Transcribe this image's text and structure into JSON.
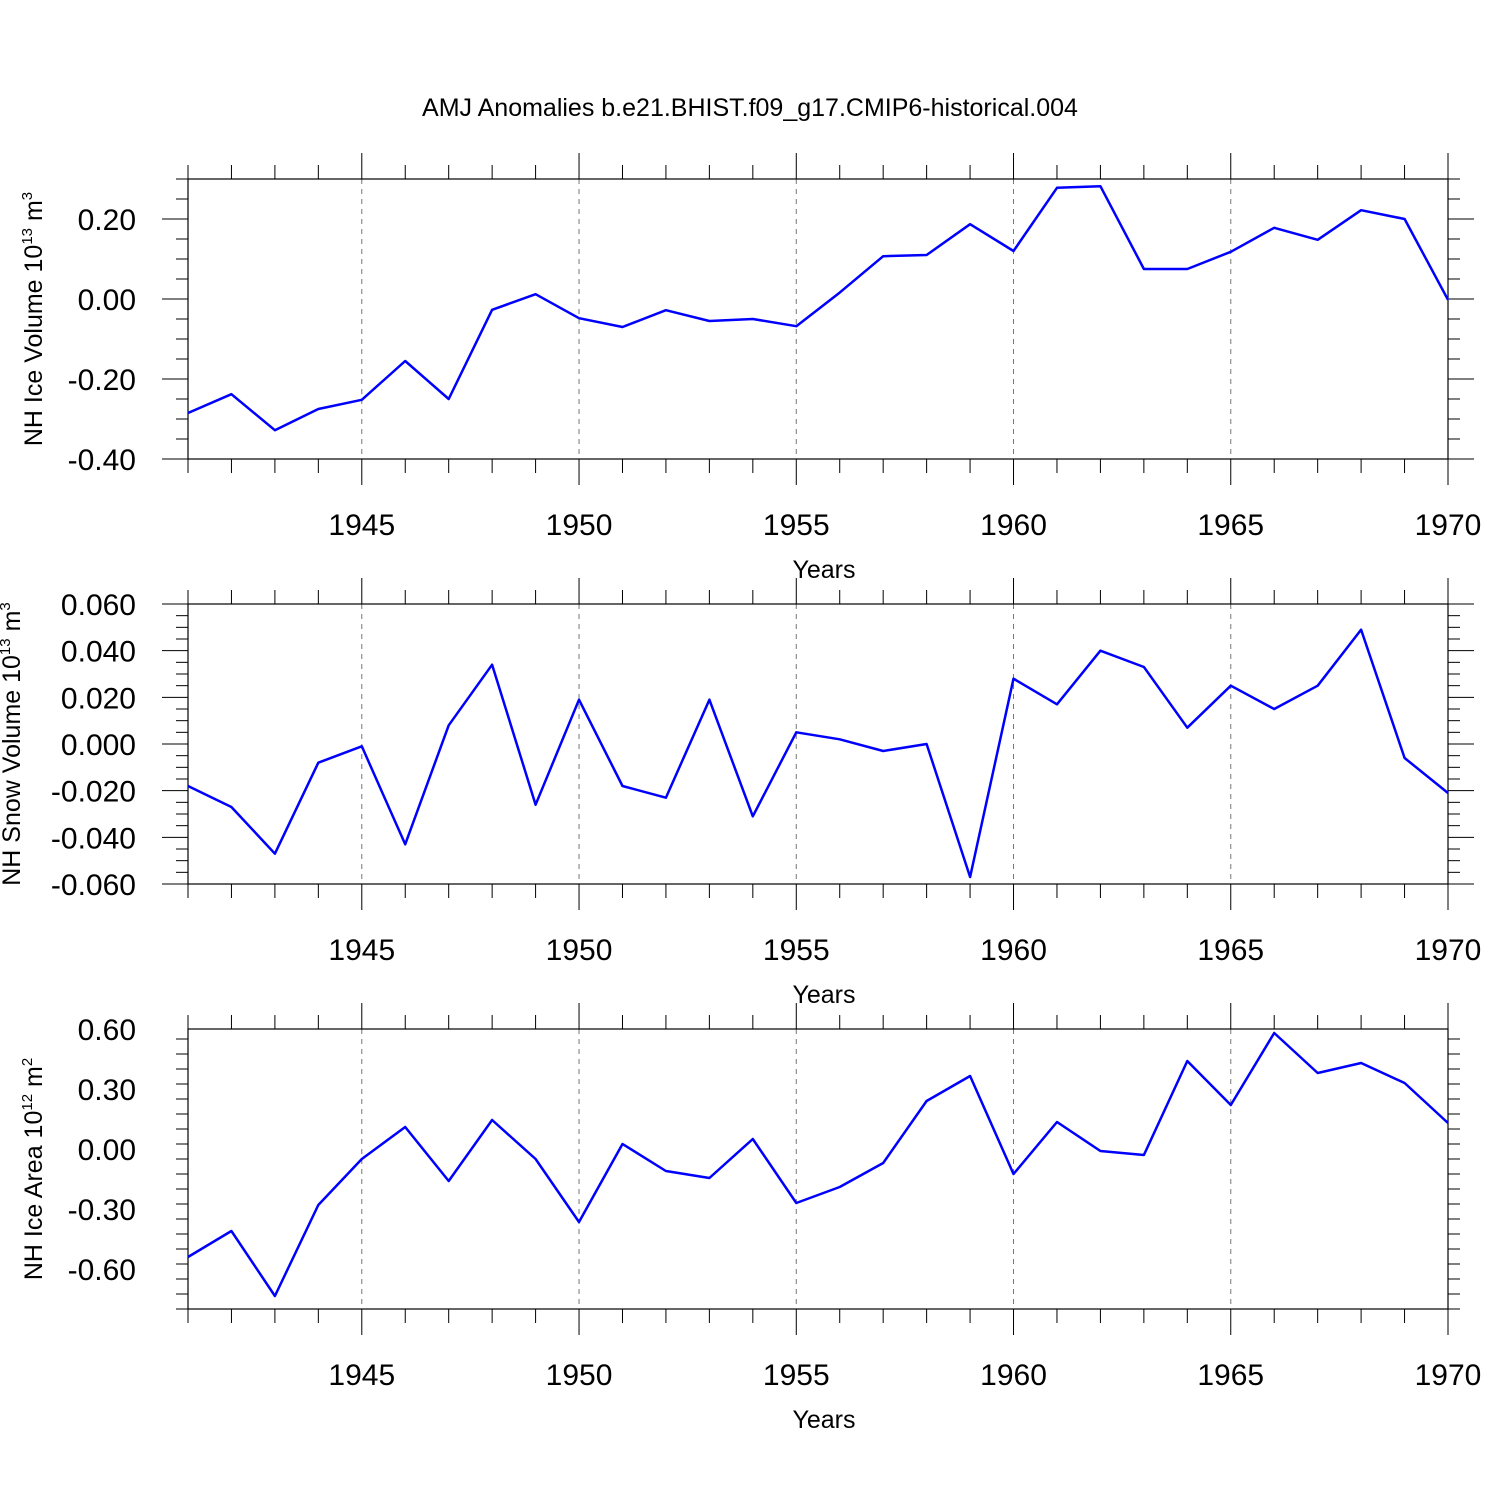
{
  "chart_data": {
    "title": "AMJ Anomalies b.e21.BHIST.f09_g17.CMIP6-historical.004",
    "panels": [
      {
        "type": "line",
        "ylabel_main": "NH Ice Volume 10",
        "ylabel_exp": "13",
        "ylabel_unit": " m",
        "ylabel_unit_exp": "3",
        "xlabel": "Years",
        "xlim": [
          1941,
          1970
        ],
        "ylim": [
          -0.4,
          0.3
        ],
        "yticks": [
          -0.4,
          -0.2,
          0.0,
          0.2
        ],
        "ytick_labels": [
          "-0.40",
          "-0.20",
          "0.00",
          "0.20"
        ],
        "xticks": [
          1945,
          1950,
          1955,
          1960,
          1965,
          1970
        ],
        "xtick_labels": [
          "1945",
          "1950",
          "1955",
          "1960",
          "1965",
          "1970"
        ],
        "color": "#0000ff",
        "x": [
          1941,
          1942,
          1943,
          1944,
          1945,
          1946,
          1947,
          1948,
          1949,
          1950,
          1951,
          1952,
          1953,
          1954,
          1955,
          1956,
          1957,
          1958,
          1959,
          1960,
          1961,
          1962,
          1963,
          1964,
          1965,
          1966,
          1967,
          1968,
          1969,
          1970
        ],
        "values": [
          -0.285,
          -0.238,
          -0.328,
          -0.275,
          -0.252,
          -0.155,
          -0.25,
          -0.027,
          0.012,
          -0.048,
          -0.07,
          -0.028,
          -0.055,
          -0.05,
          -0.068,
          0.016,
          0.107,
          0.11,
          0.187,
          0.12,
          0.278,
          0.282,
          0.075,
          0.075,
          0.118,
          0.178,
          0.148,
          0.222,
          0.2,
          -0.002
        ]
      },
      {
        "type": "line",
        "ylabel_main": "NH Snow Volume 10",
        "ylabel_exp": "13",
        "ylabel_unit": " m",
        "ylabel_unit_exp": "3",
        "xlabel": "Years",
        "xlim": [
          1941,
          1970
        ],
        "ylim": [
          -0.06,
          0.06
        ],
        "yticks": [
          -0.06,
          -0.04,
          -0.02,
          0.0,
          0.02,
          0.04,
          0.06
        ],
        "ytick_labels": [
          "-0.060",
          "-0.040",
          "-0.020",
          "0.000",
          "0.020",
          "0.040",
          "0.060"
        ],
        "xticks": [
          1945,
          1950,
          1955,
          1960,
          1965,
          1970
        ],
        "xtick_labels": [
          "1945",
          "1950",
          "1955",
          "1960",
          "1965",
          "1970"
        ],
        "color": "#0000ff",
        "x": [
          1941,
          1942,
          1943,
          1944,
          1945,
          1946,
          1947,
          1948,
          1949,
          1950,
          1951,
          1952,
          1953,
          1954,
          1955,
          1956,
          1957,
          1958,
          1959,
          1960,
          1961,
          1962,
          1963,
          1964,
          1965,
          1966,
          1967,
          1968,
          1969,
          1970
        ],
        "values": [
          -0.018,
          -0.027,
          -0.047,
          -0.008,
          -0.001,
          -0.043,
          0.008,
          0.034,
          -0.026,
          0.019,
          -0.018,
          -0.023,
          0.019,
          -0.031,
          0.005,
          0.002,
          -0.003,
          0.0,
          -0.057,
          0.028,
          0.017,
          0.04,
          0.033,
          0.007,
          0.025,
          0.015,
          0.025,
          0.049,
          -0.006,
          -0.021
        ]
      },
      {
        "type": "line",
        "ylabel_main": "NH Ice Area 10",
        "ylabel_exp": "12",
        "ylabel_unit": " m",
        "ylabel_unit_exp": "2",
        "xlabel": "Years",
        "xlim": [
          1941,
          1970
        ],
        "ylim": [
          -0.8,
          0.6
        ],
        "yticks": [
          -0.6,
          -0.3,
          0.0,
          0.3,
          0.6
        ],
        "ytick_labels": [
          "-0.60",
          "-0.30",
          "0.00",
          "0.30",
          "0.60"
        ],
        "xticks": [
          1945,
          1950,
          1955,
          1960,
          1965,
          1970
        ],
        "xtick_labels": [
          "1945",
          "1950",
          "1955",
          "1960",
          "1965",
          "1970"
        ],
        "color": "#0000ff",
        "x": [
          1941,
          1942,
          1943,
          1944,
          1945,
          1946,
          1947,
          1948,
          1949,
          1950,
          1951,
          1952,
          1953,
          1954,
          1955,
          1956,
          1957,
          1958,
          1959,
          1960,
          1961,
          1962,
          1963,
          1964,
          1965,
          1966,
          1967,
          1968,
          1969,
          1970
        ],
        "values": [
          -0.54,
          -0.41,
          -0.735,
          -0.28,
          -0.05,
          0.11,
          -0.16,
          0.145,
          -0.05,
          -0.365,
          0.025,
          -0.11,
          -0.145,
          0.05,
          -0.27,
          -0.19,
          -0.07,
          0.24,
          0.365,
          -0.125,
          0.135,
          -0.01,
          -0.03,
          0.44,
          0.22,
          0.58,
          0.38,
          0.43,
          0.33,
          0.13
        ]
      }
    ]
  }
}
